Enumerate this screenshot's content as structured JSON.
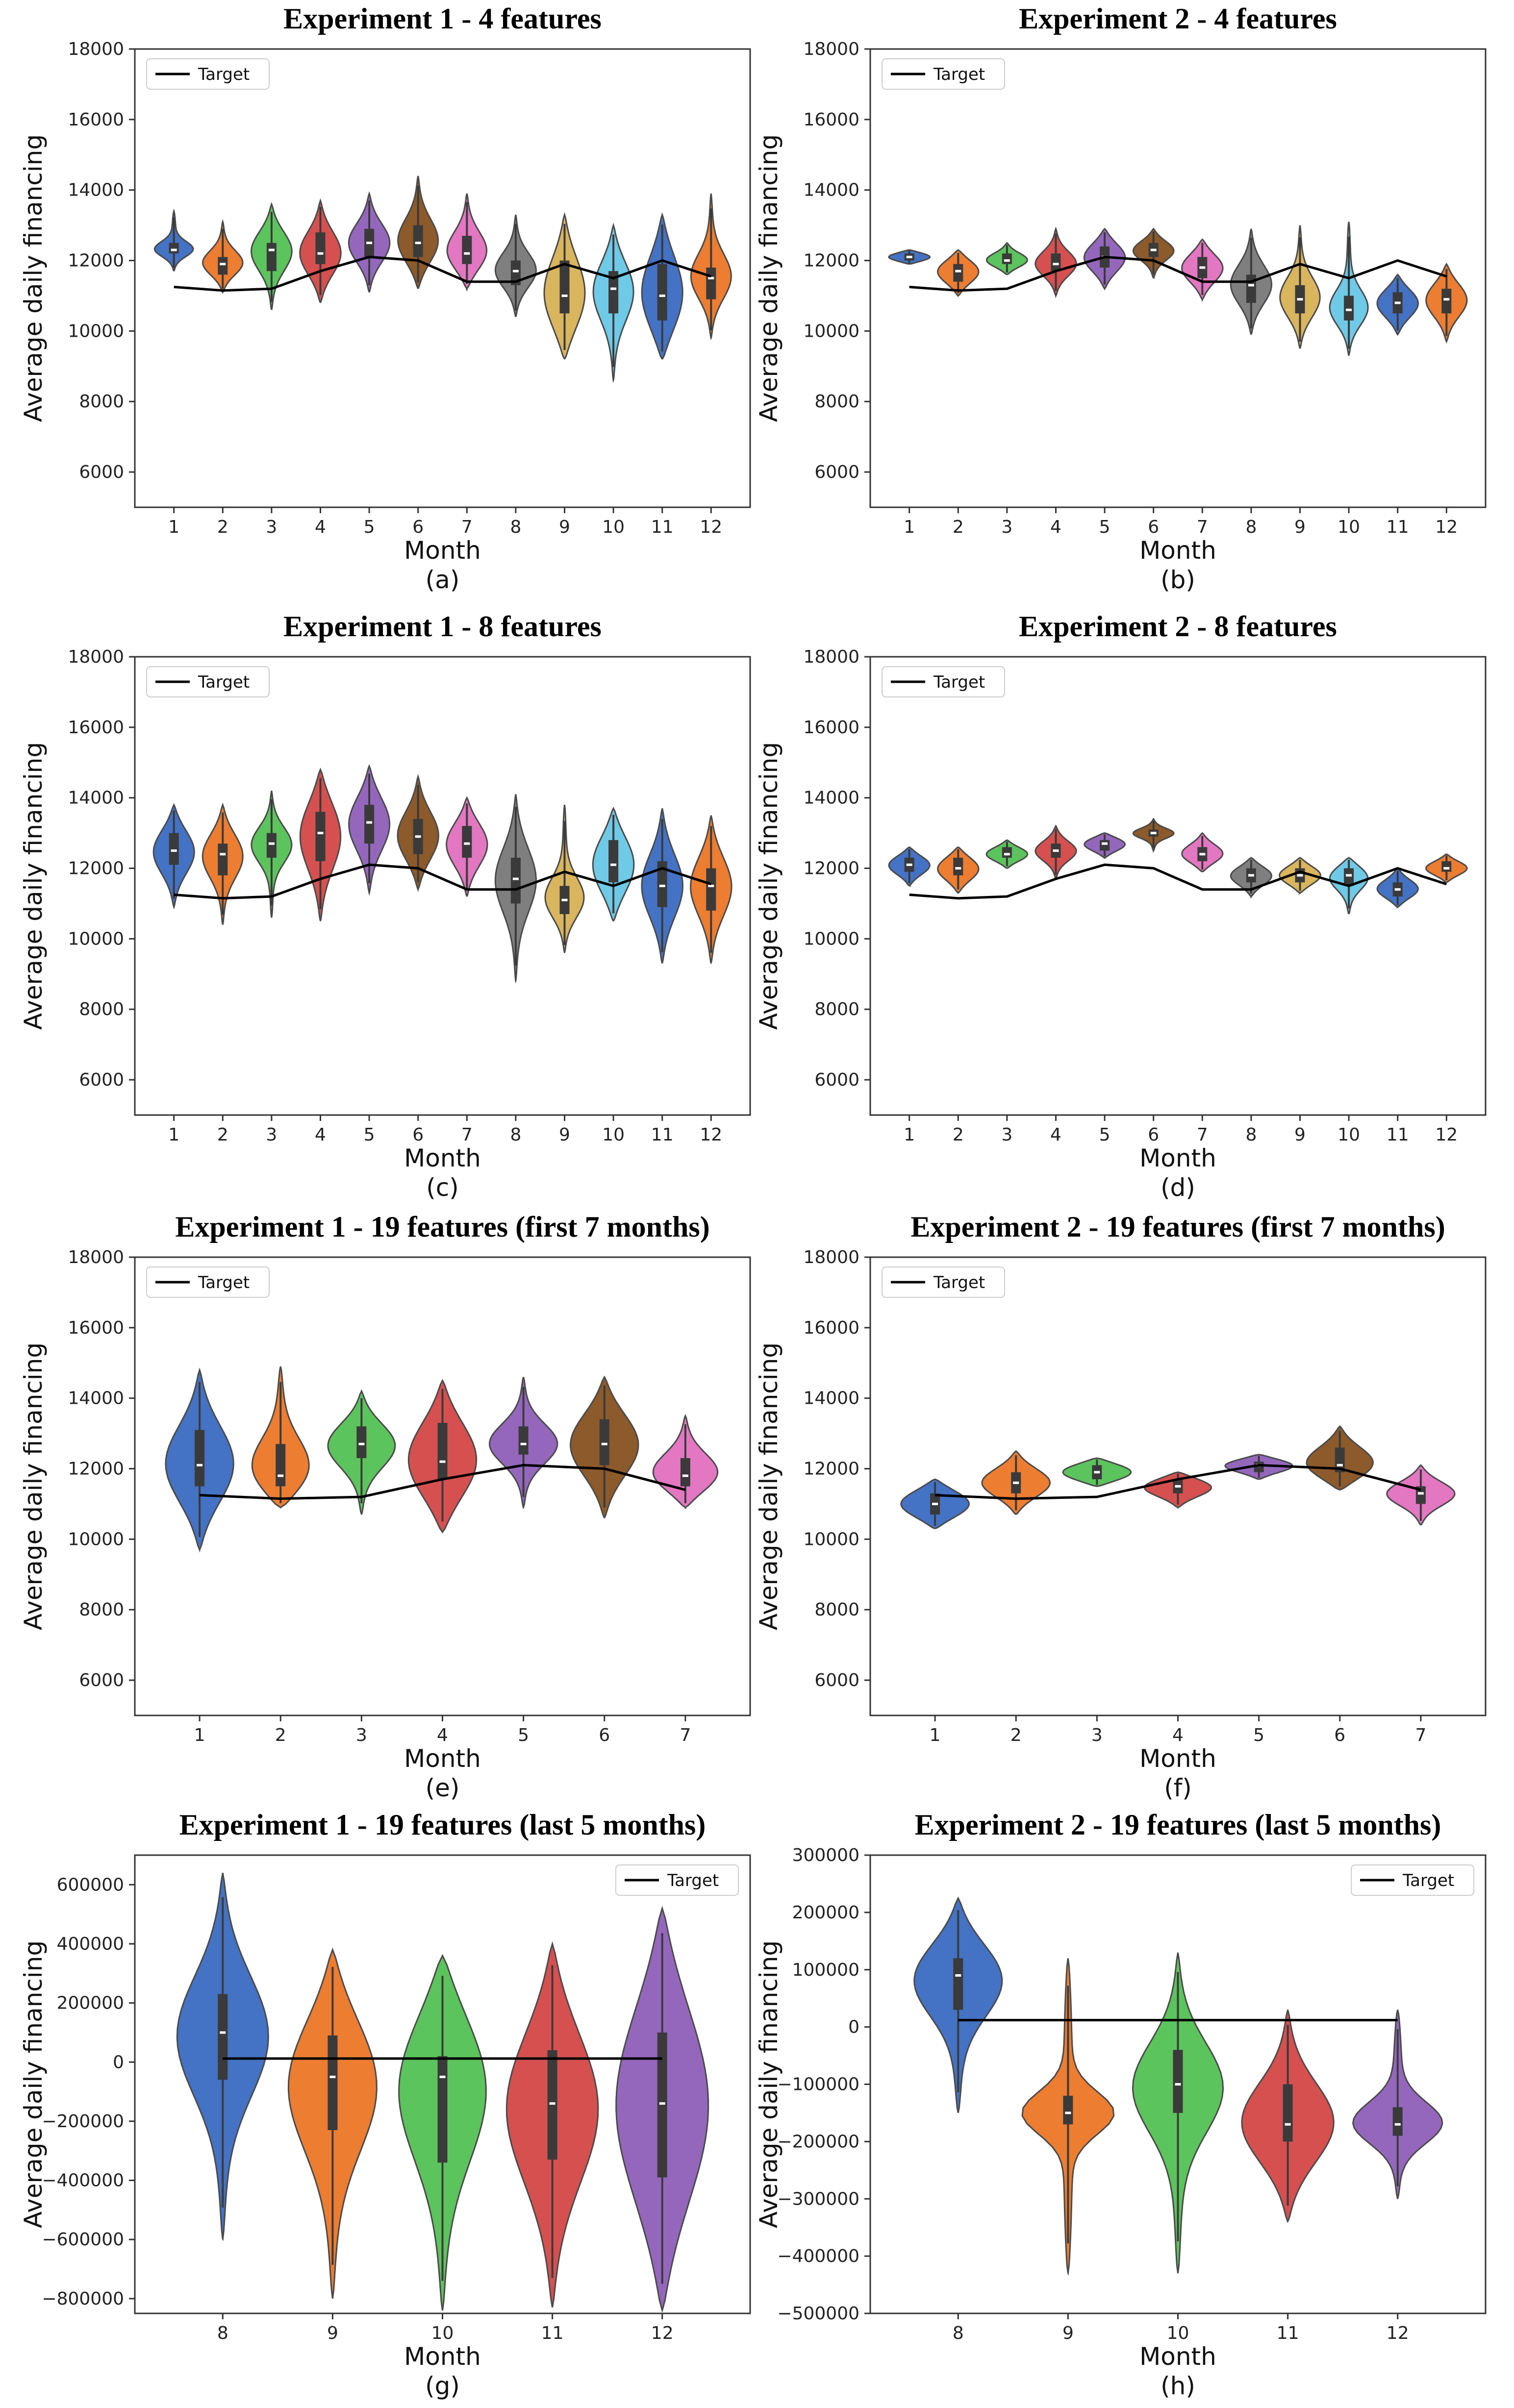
{
  "figure": {
    "xlabel": "Month",
    "ylabel": "Average daily financing",
    "legend_label": "Target",
    "legend_position": "top-left",
    "target_color": "#000000",
    "palette": [
      "#4472c4",
      "#ed7d31",
      "#5cc45c",
      "#d65050",
      "#9467bd",
      "#8c5a2b",
      "#e377c2",
      "#7f7f7f",
      "#d9b55e",
      "#6ecae6",
      "#4472c4",
      "#ed7d31"
    ],
    "palette_last5": [
      "#4472c4",
      "#ed7d31",
      "#5cc45c",
      "#d65050",
      "#9467bd"
    ]
  },
  "chart_data": [
    {
      "type": "violin",
      "title": "Experiment 1 - 4 features",
      "sublabel": "(a)",
      "xlabel": "Month",
      "ylabel": "Average daily financing",
      "ylim": [
        5000,
        18000
      ],
      "yticks": [
        "6000",
        "8000",
        "10000",
        "12000",
        "14000",
        "16000",
        "18000"
      ],
      "categories": [
        "1",
        "2",
        "3",
        "4",
        "5",
        "6",
        "7",
        "8",
        "9",
        "10",
        "11",
        "12"
      ],
      "target": [
        11250,
        11150,
        11200,
        11700,
        12100,
        12000,
        11400,
        11400,
        11900,
        11500,
        12000,
        11550
      ],
      "violins": [
        {
          "min": 11700,
          "q1": 12200,
          "median": 12300,
          "q3": 12500,
          "max": 13400
        },
        {
          "min": 11100,
          "q1": 11600,
          "median": 11900,
          "q3": 12100,
          "max": 13100
        },
        {
          "min": 10600,
          "q1": 11700,
          "median": 12300,
          "q3": 12500,
          "max": 13600
        },
        {
          "min": 10800,
          "q1": 11900,
          "median": 12200,
          "q3": 12800,
          "max": 13700
        },
        {
          "min": 11100,
          "q1": 12100,
          "median": 12500,
          "q3": 12900,
          "max": 13900
        },
        {
          "min": 11200,
          "q1": 12100,
          "median": 12500,
          "q3": 13000,
          "max": 14400
        },
        {
          "min": 11200,
          "q1": 11900,
          "median": 12200,
          "q3": 12700,
          "max": 13900
        },
        {
          "min": 10400,
          "q1": 11300,
          "median": 11700,
          "q3": 12000,
          "max": 13300
        },
        {
          "min": 9200,
          "q1": 10500,
          "median": 11000,
          "q3": 12000,
          "max": 13300
        },
        {
          "min": 8600,
          "q1": 10500,
          "median": 11200,
          "q3": 11700,
          "max": 13000
        },
        {
          "min": 9200,
          "q1": 10300,
          "median": 11000,
          "q3": 11900,
          "max": 13300
        },
        {
          "min": 9800,
          "q1": 10900,
          "median": 11500,
          "q3": 11800,
          "max": 13900
        }
      ]
    },
    {
      "type": "violin",
      "title": "Experiment 2 - 4 features",
      "sublabel": "(b)",
      "xlabel": "Month",
      "ylabel": "Average daily financing",
      "ylim": [
        5000,
        18000
      ],
      "yticks": [
        "6000",
        "8000",
        "10000",
        "12000",
        "14000",
        "16000",
        "18000"
      ],
      "categories": [
        "1",
        "2",
        "3",
        "4",
        "5",
        "6",
        "7",
        "8",
        "9",
        "10",
        "11",
        "12"
      ],
      "target": [
        11250,
        11150,
        11200,
        11700,
        12100,
        12000,
        11400,
        11400,
        11900,
        11500,
        12000,
        11550
      ],
      "violins": [
        {
          "min": 11900,
          "q1": 12000,
          "median": 12100,
          "q3": 12200,
          "max": 12300
        },
        {
          "min": 11000,
          "q1": 11400,
          "median": 11700,
          "q3": 11900,
          "max": 12300
        },
        {
          "min": 11600,
          "q1": 11900,
          "median": 12000,
          "q3": 12200,
          "max": 12500
        },
        {
          "min": 11000,
          "q1": 11700,
          "median": 11900,
          "q3": 12200,
          "max": 12900
        },
        {
          "min": 11200,
          "q1": 11800,
          "median": 12100,
          "q3": 12400,
          "max": 12900
        },
        {
          "min": 11500,
          "q1": 12100,
          "median": 12300,
          "q3": 12500,
          "max": 12900
        },
        {
          "min": 10900,
          "q1": 11500,
          "median": 11800,
          "q3": 12100,
          "max": 12600
        },
        {
          "min": 9900,
          "q1": 10800,
          "median": 11300,
          "q3": 11600,
          "max": 12900
        },
        {
          "min": 9500,
          "q1": 10500,
          "median": 10900,
          "q3": 11300,
          "max": 13000
        },
        {
          "min": 9300,
          "q1": 10300,
          "median": 10600,
          "q3": 11000,
          "max": 13100
        },
        {
          "min": 9900,
          "q1": 10500,
          "median": 10800,
          "q3": 11100,
          "max": 11600
        },
        {
          "min": 9700,
          "q1": 10500,
          "median": 10900,
          "q3": 11200,
          "max": 11900
        }
      ]
    },
    {
      "type": "violin",
      "title": "Experiment 1 - 8 features",
      "sublabel": "(c)",
      "xlabel": "Month",
      "ylabel": "Average daily financing",
      "ylim": [
        5000,
        18000
      ],
      "yticks": [
        "6000",
        "8000",
        "10000",
        "12000",
        "14000",
        "16000",
        "18000"
      ],
      "categories": [
        "1",
        "2",
        "3",
        "4",
        "5",
        "6",
        "7",
        "8",
        "9",
        "10",
        "11",
        "12"
      ],
      "target": [
        11250,
        11150,
        11200,
        11700,
        12100,
        12000,
        11400,
        11400,
        11900,
        11500,
        12000,
        11550
      ],
      "violins": [
        {
          "min": 10900,
          "q1": 12100,
          "median": 12500,
          "q3": 13000,
          "max": 13800
        },
        {
          "min": 10400,
          "q1": 11800,
          "median": 12400,
          "q3": 12700,
          "max": 13800
        },
        {
          "min": 10600,
          "q1": 12300,
          "median": 12700,
          "q3": 13000,
          "max": 14200
        },
        {
          "min": 10500,
          "q1": 12200,
          "median": 13000,
          "q3": 13600,
          "max": 14800
        },
        {
          "min": 11300,
          "q1": 12700,
          "median": 13300,
          "q3": 13800,
          "max": 14900
        },
        {
          "min": 11400,
          "q1": 12400,
          "median": 12900,
          "q3": 13400,
          "max": 14600
        },
        {
          "min": 11200,
          "q1": 12300,
          "median": 12700,
          "q3": 13200,
          "max": 14000
        },
        {
          "min": 8800,
          "q1": 11000,
          "median": 11700,
          "q3": 12300,
          "max": 14100
        },
        {
          "min": 9600,
          "q1": 10700,
          "median": 11100,
          "q3": 11500,
          "max": 13800
        },
        {
          "min": 10500,
          "q1": 11600,
          "median": 12100,
          "q3": 12800,
          "max": 13700
        },
        {
          "min": 9300,
          "q1": 10900,
          "median": 11500,
          "q3": 12200,
          "max": 13700
        },
        {
          "min": 9300,
          "q1": 10800,
          "median": 11500,
          "q3": 12000,
          "max": 13500
        }
      ]
    },
    {
      "type": "violin",
      "title": "Experiment 2 - 8 features",
      "sublabel": "(d)",
      "xlabel": "Month",
      "ylabel": "Average daily financing",
      "ylim": [
        5000,
        18000
      ],
      "yticks": [
        "6000",
        "8000",
        "10000",
        "12000",
        "14000",
        "16000",
        "18000"
      ],
      "categories": [
        "1",
        "2",
        "3",
        "4",
        "5",
        "6",
        "7",
        "8",
        "9",
        "10",
        "11",
        "12"
      ],
      "target": [
        11250,
        11150,
        11200,
        11700,
        12100,
        12000,
        11400,
        11400,
        11900,
        11500,
        12000,
        11550
      ],
      "violins": [
        {
          "min": 11500,
          "q1": 11900,
          "median": 12100,
          "q3": 12300,
          "max": 12600
        },
        {
          "min": 11300,
          "q1": 11800,
          "median": 12000,
          "q3": 12300,
          "max": 12600
        },
        {
          "min": 12000,
          "q1": 12300,
          "median": 12400,
          "q3": 12600,
          "max": 12800
        },
        {
          "min": 11700,
          "q1": 12300,
          "median": 12500,
          "q3": 12700,
          "max": 13200
        },
        {
          "min": 12300,
          "q1": 12500,
          "median": 12700,
          "q3": 12800,
          "max": 13000
        },
        {
          "min": 12500,
          "q1": 12900,
          "median": 13000,
          "q3": 13100,
          "max": 13400
        },
        {
          "min": 11900,
          "q1": 12200,
          "median": 12400,
          "q3": 12600,
          "max": 13000
        },
        {
          "min": 11200,
          "q1": 11600,
          "median": 11800,
          "q3": 12000,
          "max": 12300
        },
        {
          "min": 11300,
          "q1": 11600,
          "median": 11800,
          "q3": 12000,
          "max": 12300
        },
        {
          "min": 10700,
          "q1": 11500,
          "median": 11800,
          "q3": 12000,
          "max": 12300
        },
        {
          "min": 10900,
          "q1": 11200,
          "median": 11400,
          "q3": 11600,
          "max": 12000
        },
        {
          "min": 11600,
          "q1": 11900,
          "median": 12000,
          "q3": 12200,
          "max": 12400
        }
      ]
    },
    {
      "type": "violin",
      "title": "Experiment 1 - 19 features (first 7 months)",
      "sublabel": "(e)",
      "xlabel": "Month",
      "ylabel": "Average daily financing",
      "ylim": [
        5000,
        18000
      ],
      "yticks": [
        "6000",
        "8000",
        "10000",
        "12000",
        "14000",
        "16000",
        "18000"
      ],
      "categories": [
        "1",
        "2",
        "3",
        "4",
        "5",
        "6",
        "7"
      ],
      "target": [
        11250,
        11150,
        11200,
        11700,
        12100,
        12000,
        11400
      ],
      "violins": [
        {
          "min": 9700,
          "q1": 11500,
          "median": 12100,
          "q3": 13100,
          "max": 14800
        },
        {
          "min": 10900,
          "q1": 11500,
          "median": 11800,
          "q3": 12700,
          "max": 14900
        },
        {
          "min": 10700,
          "q1": 12300,
          "median": 12700,
          "q3": 13200,
          "max": 14200
        },
        {
          "min": 10200,
          "q1": 11700,
          "median": 12200,
          "q3": 13300,
          "max": 14500
        },
        {
          "min": 10900,
          "q1": 12400,
          "median": 12700,
          "q3": 13200,
          "max": 14600
        },
        {
          "min": 10600,
          "q1": 12100,
          "median": 12700,
          "q3": 13400,
          "max": 14600
        },
        {
          "min": 10900,
          "q1": 11500,
          "median": 11800,
          "q3": 12300,
          "max": 13500
        }
      ]
    },
    {
      "type": "violin",
      "title": "Experiment 2 - 19 features (first 7 months)",
      "sublabel": "(f)",
      "xlabel": "Month",
      "ylabel": "Average daily financing",
      "ylim": [
        5000,
        18000
      ],
      "yticks": [
        "6000",
        "8000",
        "10000",
        "12000",
        "14000",
        "16000",
        "18000"
      ],
      "categories": [
        "1",
        "2",
        "3",
        "4",
        "5",
        "6",
        "7"
      ],
      "target": [
        11250,
        11150,
        11200,
        11700,
        12100,
        12000,
        11400
      ],
      "violins": [
        {
          "min": 10300,
          "q1": 10700,
          "median": 11000,
          "q3": 11300,
          "max": 11700
        },
        {
          "min": 10700,
          "q1": 11300,
          "median": 11600,
          "q3": 11900,
          "max": 12500
        },
        {
          "min": 11500,
          "q1": 11700,
          "median": 11900,
          "q3": 12100,
          "max": 12300
        },
        {
          "min": 10900,
          "q1": 11300,
          "median": 11500,
          "q3": 11700,
          "max": 11900
        },
        {
          "min": 11700,
          "q1": 11900,
          "median": 12100,
          "q3": 12200,
          "max": 12400
        },
        {
          "min": 11400,
          "q1": 11900,
          "median": 12100,
          "q3": 12600,
          "max": 13200
        },
        {
          "min": 10400,
          "q1": 11000,
          "median": 11300,
          "q3": 11500,
          "max": 12100
        }
      ]
    },
    {
      "type": "violin",
      "title": "Experiment 1 - 19 features (last 5 months)",
      "sublabel": "(g)",
      "xlabel": "Month",
      "ylabel": "Average daily financing",
      "ylim": [
        -850000,
        700000
      ],
      "yticks": [
        "−800000",
        "−600000",
        "−400000",
        "−200000",
        "0",
        "200000",
        "400000",
        "600000"
      ],
      "yticks_values": [
        -800000,
        -600000,
        -400000,
        -200000,
        0,
        200000,
        400000,
        600000
      ],
      "categories": [
        "8",
        "9",
        "10",
        "11",
        "12"
      ],
      "target": [
        12000,
        12000,
        12000,
        12000,
        12000
      ],
      "violins": [
        {
          "min": -600000,
          "q1": -60000,
          "median": 100000,
          "q3": 230000,
          "max": 640000
        },
        {
          "min": -800000,
          "q1": -230000,
          "median": -50000,
          "q3": 90000,
          "max": 380000
        },
        {
          "min": -840000,
          "q1": -340000,
          "median": -50000,
          "q3": 20000,
          "max": 360000
        },
        {
          "min": -830000,
          "q1": -330000,
          "median": -140000,
          "q3": 40000,
          "max": 400000
        },
        {
          "min": -840000,
          "q1": -390000,
          "median": -140000,
          "q3": 100000,
          "max": 520000
        }
      ]
    },
    {
      "type": "violin",
      "title": "Experiment 2 - 19 features (last 5 months)",
      "sublabel": "(h)",
      "xlabel": "Month",
      "ylabel": "Average daily financing",
      "ylim": [
        -500000,
        300000
      ],
      "yticks": [
        "−500000",
        "−400000",
        "−300000",
        "−200000",
        "−100000",
        "0",
        "100000",
        "200000",
        "300000"
      ],
      "yticks_values": [
        -500000,
        -400000,
        -300000,
        -200000,
        -100000,
        0,
        100000,
        200000,
        300000
      ],
      "categories": [
        "8",
        "9",
        "10",
        "11",
        "12"
      ],
      "target": [
        12000,
        12000,
        12000,
        12000,
        12000
      ],
      "violins": [
        {
          "min": -150000,
          "q1": 30000,
          "median": 90000,
          "q3": 120000,
          "max": 225000
        },
        {
          "min": -430000,
          "q1": -170000,
          "median": -150000,
          "q3": -120000,
          "max": 120000
        },
        {
          "min": -430000,
          "q1": -150000,
          "median": -100000,
          "q3": -40000,
          "max": 130000
        },
        {
          "min": -340000,
          "q1": -200000,
          "median": -170000,
          "q3": -100000,
          "max": 30000
        },
        {
          "min": -300000,
          "q1": -190000,
          "median": -170000,
          "q3": -140000,
          "max": 30000
        }
      ]
    }
  ]
}
